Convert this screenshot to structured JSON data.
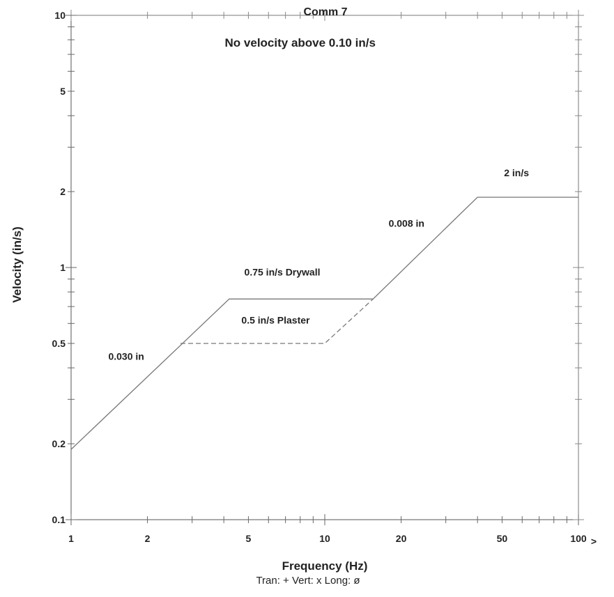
{
  "chart_data": {
    "type": "line",
    "title": "Comm 7",
    "xlabel": "Frequency (Hz)",
    "ylabel": "Velocity (in/s)",
    "xscale": "log",
    "yscale": "log",
    "xlim": [
      1,
      100
    ],
    "ylim": [
      0.1,
      10
    ],
    "x_ticks": [
      1,
      2,
      5,
      10,
      20,
      50,
      100
    ],
    "x_tick_labels": [
      "1",
      "2",
      "5",
      "10",
      "20",
      "50",
      "100"
    ],
    "y_ticks": [
      0.1,
      0.2,
      0.5,
      1,
      2,
      5,
      10
    ],
    "y_tick_labels": [
      "0.1",
      "0.2",
      "0.5",
      "1",
      "2",
      "5",
      "10"
    ],
    "x_axis_arrow": ">",
    "grid": false,
    "series": [
      {
        "name": "0.75 in/s Drywall",
        "style": "solid",
        "x": [
          1,
          4.2,
          15.5,
          40,
          100
        ],
        "y": [
          0.19,
          0.75,
          0.75,
          1.9,
          1.9
        ]
      },
      {
        "name": "0.5 in/s Plaster",
        "style": "dashed",
        "x": [
          2.7,
          10,
          15.5
        ],
        "y": [
          0.5,
          0.5,
          0.75
        ]
      }
    ],
    "annotations": [
      {
        "text": "No velocity above 0.10 in/s",
        "x": 8,
        "y": 7.5,
        "size": "large"
      },
      {
        "text": "0.030 in",
        "x": 1.65,
        "y": 0.43
      },
      {
        "text": "0.75 in/s Drywall",
        "x": 6.8,
        "y": 0.93
      },
      {
        "text": "0.5 in/s Plaster",
        "x": 6.4,
        "y": 0.6
      },
      {
        "text": "0.008 in",
        "x": 21,
        "y": 1.45
      },
      {
        "text": "2 in/s",
        "x": 57,
        "y": 2.3
      }
    ],
    "legend_text": "Tran: +  Vert: x  Long: ø"
  }
}
